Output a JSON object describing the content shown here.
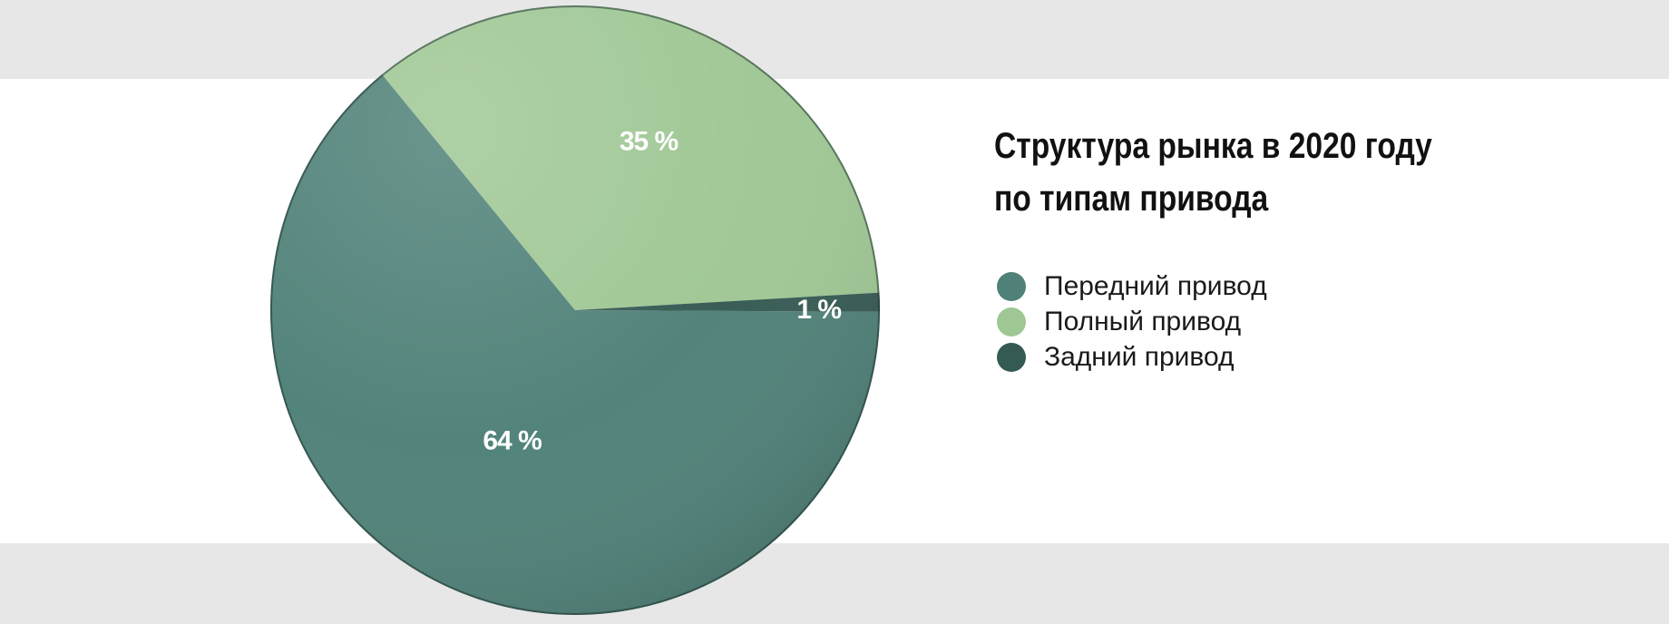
{
  "chart_data": {
    "type": "pie",
    "title_lines": [
      "Структура рынка в 2020 году",
      "по типам привода"
    ],
    "slices": [
      {
        "label": "Передний привод",
        "value": 64,
        "display": "64 %",
        "color": "#4f8178"
      },
      {
        "label": "Полный привод",
        "value": 35,
        "display": "35 %",
        "color": "#9fc794"
      },
      {
        "label": "Задний привод",
        "value": 1,
        "display": "1 %",
        "color": "#355a53"
      }
    ],
    "legend_position": "right"
  },
  "colors": {
    "band_background": "#e7e7e7",
    "plot_background": "#ffffff"
  }
}
